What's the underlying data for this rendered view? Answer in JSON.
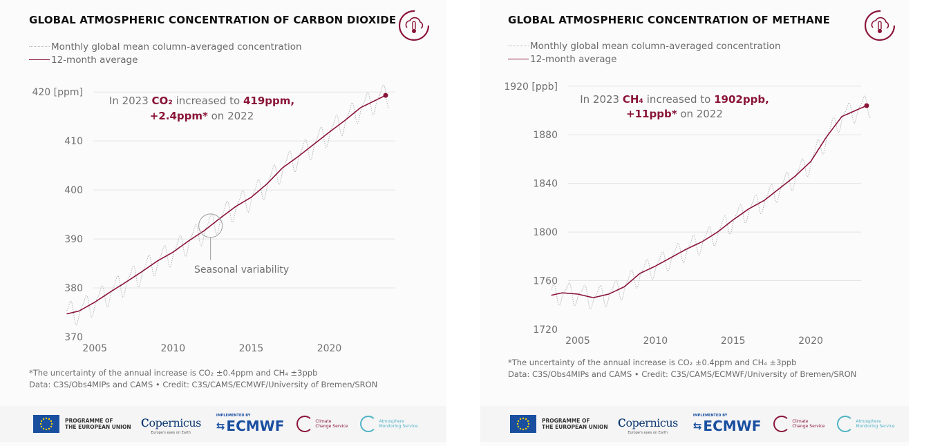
{
  "panels": [
    {
      "id": "co2",
      "title": "GLOBAL ATMOSPHERIC CONCENTRATION OF CARBON DIOXIDE",
      "legend": {
        "monthly": "Monthly global mean column-averaged concentration",
        "average": "12-month average"
      },
      "annotation": {
        "line1_pre": "In 2023 ",
        "line1_gas": "CO₂",
        "line1_mid": " increased to ",
        "line1_value": "419ppm,",
        "line2_change": "+2.4ppm*",
        "line2_post": " on 2022"
      },
      "callout": "Seasonal variability",
      "footnote": "*The uncertainty of the annual increase is CO₂ ±0.4ppm and CH₄ ±3ppb",
      "credit": "Data: C3S/Obs4MIPs and CAMS • Credit: C3S/CAMS/ECMWF/University of Bremen/SRON"
    },
    {
      "id": "ch4",
      "title": "GLOBAL ATMOSPHERIC CONCENTRATION OF METHANE",
      "legend": {
        "monthly": "Monthly global mean column-averaged concentration",
        "average": "12-month average"
      },
      "annotation": {
        "line1_pre": "In 2023 ",
        "line1_gas": "CH₄",
        "line1_mid": " increased to ",
        "line1_value": "1902ppb,",
        "line2_change": "+11ppb*",
        "line2_post": " on 2022"
      },
      "footnote": "*The uncertainty of the annual increase is CO₂ ±0.4ppm and CH₄ ±3ppb",
      "credit": "Data: C3S/Obs4MIPs and CAMS • Credit: C3S/CAMS/ECMWF/University of Bremen/SRON"
    }
  ],
  "logos": {
    "eu_line1": "PROGRAMME OF",
    "eu_line2": "THE EUROPEAN UNION",
    "copernicus": "opernicus",
    "copernicus_sub": "Europe's eyes on Earth",
    "ecmwf_small": "IMPLEMENTED BY",
    "ecmwf": "ECMWF",
    "c3s_line1": "Climate",
    "c3s_line2": "Change Service",
    "cams_line1": "Atmosphere",
    "cams_line2": "Monitoring Service"
  },
  "colors": {
    "accent": "#8a1538",
    "monthly": "#b6b6b6",
    "grid": "#e3e3e3"
  },
  "chart_data": [
    {
      "type": "line",
      "title": "GLOBAL ATMOSPHERIC CONCENTRATION OF CARBON DIOXIDE",
      "unit": "ppm",
      "xlim": [
        2003,
        2024
      ],
      "ylim": [
        370,
        422
      ],
      "x_ticks": [
        2005,
        2010,
        2015,
        2020
      ],
      "y_ticks": [
        370,
        380,
        390,
        400,
        410,
        420
      ],
      "y_tick_labels": [
        "370",
        "380",
        "390",
        "400",
        "410",
        "420 [ppm]"
      ],
      "grid": true,
      "legend_position": "top-left",
      "seasonal_amplitude": 2.2,
      "series": [
        {
          "name": "12-month average",
          "x": [
            2003.2,
            2004,
            2005,
            2006,
            2007,
            2008,
            2009,
            2010,
            2011,
            2012,
            2013,
            2014,
            2015,
            2016,
            2017,
            2018,
            2019,
            2020,
            2021,
            2022,
            2023.6
          ],
          "values": [
            374.7,
            375.3,
            377.1,
            379.2,
            381.2,
            383.3,
            385.5,
            387.3,
            389.6,
            391.7,
            394.2,
            396.6,
            398.5,
            401.2,
            404.5,
            406.8,
            409.3,
            411.8,
            414.2,
            416.8,
            419.3
          ]
        }
      ],
      "annotation": "Seasonal variability"
    },
    {
      "type": "line",
      "title": "GLOBAL ATMOSPHERIC CONCENTRATION OF METHANE",
      "unit": "ppb",
      "xlim": [
        2003,
        2024
      ],
      "ylim": [
        1720,
        1925
      ],
      "x_ticks": [
        2005,
        2010,
        2015,
        2020
      ],
      "y_ticks": [
        1720,
        1760,
        1800,
        1840,
        1880,
        1920
      ],
      "y_tick_labels": [
        "1720",
        "1760",
        "1800",
        "1840",
        "1880",
        "1920 [ppb]"
      ],
      "grid": true,
      "legend_position": "top-left",
      "seasonal_amplitude": 8,
      "series": [
        {
          "name": "12-month average",
          "x": [
            2003.3,
            2004,
            2005,
            2006,
            2007,
            2008,
            2009,
            2010,
            2011,
            2012,
            2013,
            2014,
            2015,
            2016,
            2017,
            2018,
            2019,
            2020,
            2021,
            2022,
            2023.6
          ],
          "values": [
            1748,
            1750,
            1749,
            1746,
            1749,
            1755,
            1766,
            1772,
            1779,
            1786,
            1792,
            1800,
            1810,
            1819,
            1826,
            1836,
            1846,
            1858,
            1878,
            1895,
            1904
          ]
        }
      ]
    }
  ]
}
